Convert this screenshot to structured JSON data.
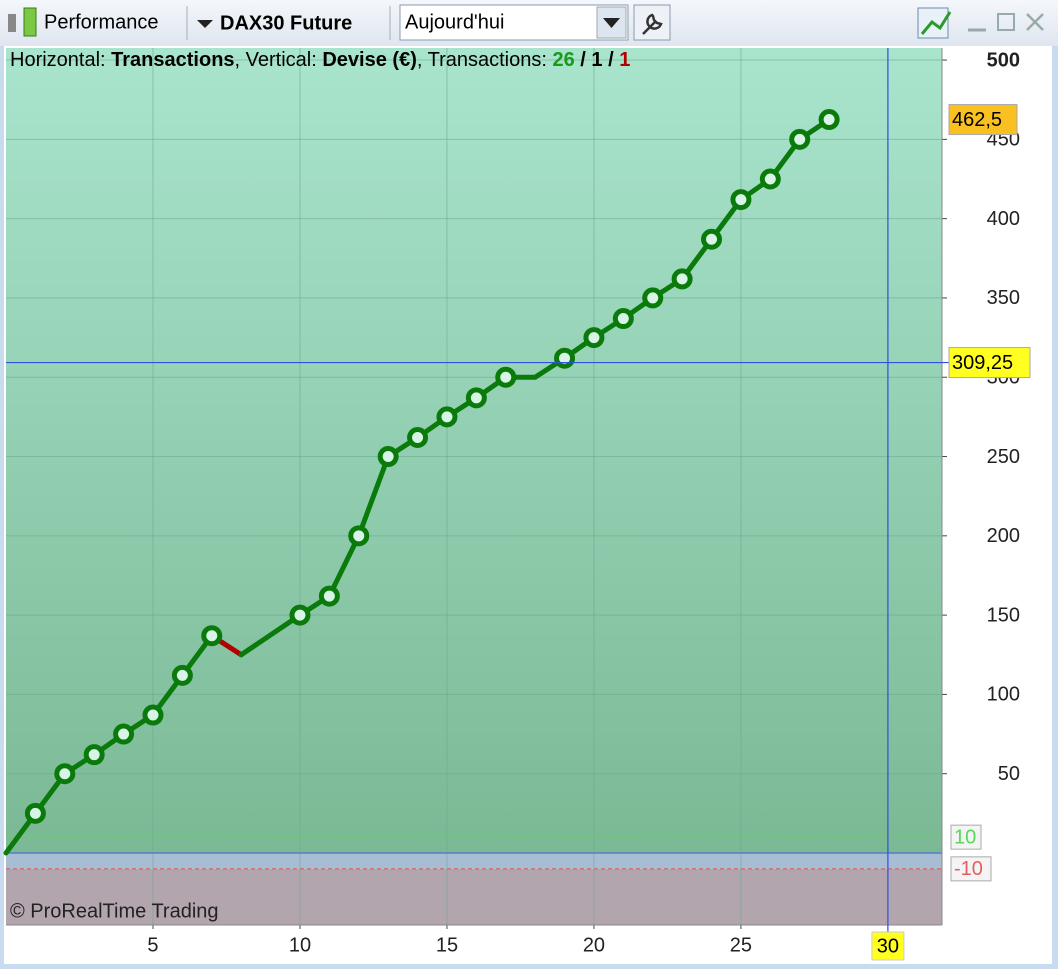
{
  "toolbar": {
    "view": "Performance",
    "instrument": "DAX30 Future",
    "period": "Aujourd'hui"
  },
  "chart_data": {
    "type": "line",
    "header": [
      {
        "text": "Horizontal: ",
        "bold": false,
        "color": "#000000"
      },
      {
        "text": "Transactions",
        "bold": true,
        "color": "#000000"
      },
      {
        "text": ", Vertical: ",
        "bold": false,
        "color": "#000000"
      },
      {
        "text": "Devise (€)",
        "bold": true,
        "color": "#000000"
      },
      {
        "text": ", Transactions: ",
        "bold": false,
        "color": "#000000"
      },
      {
        "text": 26,
        "bold": true,
        "color": "#1a9a1a"
      },
      {
        "text": " / ",
        "bold": true,
        "color": "#000000"
      },
      {
        "text": 1,
        "bold": true,
        "color": "#000000"
      },
      {
        "text": " / ",
        "bold": true,
        "color": "#000000"
      },
      {
        "text": 1,
        "bold": true,
        "color": "#b00000"
      }
    ],
    "watermark": "© ProRealTime Trading",
    "series": [
      {
        "color": "#0a7a0a",
        "loss_color": "#b00000",
        "x": [
          0,
          1,
          2,
          3,
          4,
          5,
          6,
          7,
          8,
          10,
          11,
          12,
          13,
          14,
          15,
          16,
          17,
          18,
          19,
          20,
          21,
          22,
          23,
          24,
          25,
          26,
          27,
          28
        ],
        "values": [
          0,
          25,
          50,
          62,
          75,
          87,
          112,
          137,
          125,
          150,
          162,
          200,
          250,
          262,
          275,
          287,
          300,
          300,
          312,
          325,
          337,
          350,
          362,
          387,
          412,
          425,
          450,
          462.5
        ],
        "markers": [
          false,
          true,
          true,
          true,
          true,
          true,
          true,
          true,
          false,
          true,
          true,
          true,
          true,
          true,
          true,
          true,
          true,
          false,
          true,
          true,
          true,
          true,
          true,
          true,
          true,
          true,
          true,
          true
        ]
      }
    ],
    "xlim": [
      0,
      31.84
    ],
    "xticks": [
      5,
      10,
      15,
      20,
      25,
      30
    ],
    "ylim": [
      -45.4,
      507.6
    ],
    "yticks": [
      50,
      100,
      150,
      200,
      250,
      300,
      350,
      400,
      450,
      500
    ],
    "grid": true,
    "thresholds": [
      {
        "value": 10,
        "label": "10",
        "color": "#5ad85a"
      },
      {
        "value": -10,
        "label": "-10",
        "color": "#e06060"
      }
    ],
    "last_value": {
      "value": 462.5,
      "label": "462,5"
    },
    "crosshair": {
      "x": {
        "value": 30,
        "label": "30"
      },
      "y": {
        "value": 309.25,
        "label": "309,25"
      }
    }
  }
}
